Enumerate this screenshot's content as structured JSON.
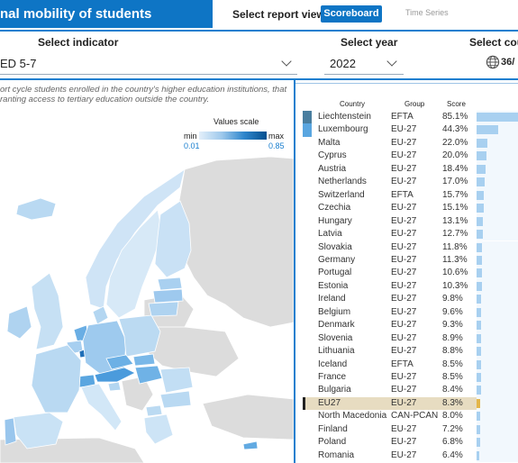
{
  "header": {
    "title": "nal mobility of students",
    "report_view_label": "Select report view",
    "tabs": [
      {
        "label": "Scoreboard",
        "active": true
      },
      {
        "label": "Time Series",
        "active": false
      }
    ]
  },
  "filters": {
    "indicator_label": "Select indicator",
    "indicator_value": "ED 5-7",
    "year_label": "Select year",
    "year_value": "2022",
    "country_label": "Select cour",
    "country_count": "36/"
  },
  "description": "ort cycle students enrolled in the country's higher education institutions, that ranting access to tertiary education outside the country.",
  "legend": {
    "title": "Values scale",
    "min_label": "min",
    "max_label": "max",
    "min_value": "0.01",
    "max_value": "0.85"
  },
  "table": {
    "columns": [
      "Country",
      "Group",
      "Score"
    ],
    "rows": [
      {
        "country": "Liechtenstein",
        "group": "EFTA",
        "score": "85.1%",
        "value": 85.1
      },
      {
        "country": "Luxembourg",
        "group": "EU-27",
        "score": "44.3%",
        "value": 44.3
      },
      {
        "country": "Malta",
        "group": "EU-27",
        "score": "22.0%",
        "value": 22.0
      },
      {
        "country": "Cyprus",
        "group": "EU-27",
        "score": "20.0%",
        "value": 20.0
      },
      {
        "country": "Austria",
        "group": "EU-27",
        "score": "18.4%",
        "value": 18.4
      },
      {
        "country": "Netherlands",
        "group": "EU-27",
        "score": "17.0%",
        "value": 17.0
      },
      {
        "country": "Switzerland",
        "group": "EFTA",
        "score": "15.7%",
        "value": 15.7
      },
      {
        "country": "Czechia",
        "group": "EU-27",
        "score": "15.1%",
        "value": 15.1
      },
      {
        "country": "Hungary",
        "group": "EU-27",
        "score": "13.1%",
        "value": 13.1
      },
      {
        "country": "Latvia",
        "group": "EU-27",
        "score": "12.7%",
        "value": 12.7
      },
      {
        "country": "Slovakia",
        "group": "EU-27",
        "score": "11.8%",
        "value": 11.8
      },
      {
        "country": "Germany",
        "group": "EU-27",
        "score": "11.3%",
        "value": 11.3
      },
      {
        "country": "Portugal",
        "group": "EU-27",
        "score": "10.6%",
        "value": 10.6
      },
      {
        "country": "Estonia",
        "group": "EU-27",
        "score": "10.3%",
        "value": 10.3
      },
      {
        "country": "Ireland",
        "group": "EU-27",
        "score": "9.8%",
        "value": 9.8
      },
      {
        "country": "Belgium",
        "group": "EU-27",
        "score": "9.6%",
        "value": 9.6
      },
      {
        "country": "Denmark",
        "group": "EU-27",
        "score": "9.3%",
        "value": 9.3
      },
      {
        "country": "Slovenia",
        "group": "EU-27",
        "score": "8.9%",
        "value": 8.9
      },
      {
        "country": "Lithuania",
        "group": "EU-27",
        "score": "8.8%",
        "value": 8.8
      },
      {
        "country": "Iceland",
        "group": "EFTA",
        "score": "8.5%",
        "value": 8.5
      },
      {
        "country": "France",
        "group": "EU-27",
        "score": "8.5%",
        "value": 8.5
      },
      {
        "country": "Bulgaria",
        "group": "EU-27",
        "score": "8.4%",
        "value": 8.4
      },
      {
        "country": "EU27",
        "group": "EU-27",
        "score": "8.3%",
        "value": 8.3,
        "highlight": true
      },
      {
        "country": "North Macedonia",
        "group": "CAN-PCAN",
        "score": "8.0%",
        "value": 8.0
      },
      {
        "country": "Finland",
        "group": "EU-27",
        "score": "7.2%",
        "value": 7.2
      },
      {
        "country": "Poland",
        "group": "EU-27",
        "score": "6.8%",
        "value": 6.8
      },
      {
        "country": "Romania",
        "group": "EU-27",
        "score": "6.4%",
        "value": 6.4
      }
    ]
  },
  "colors": {
    "accent": "#0e75c5",
    "highlight_row": "#e7dcc1",
    "no_data": "#d9d9d9"
  }
}
